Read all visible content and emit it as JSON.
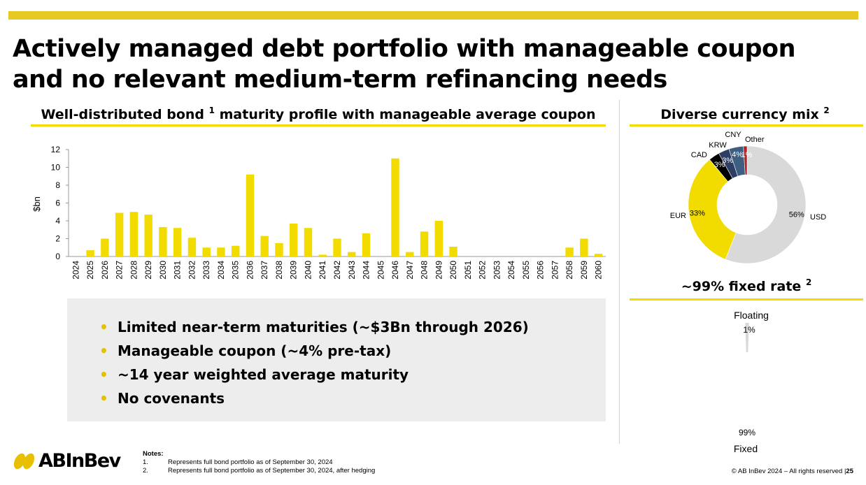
{
  "title_line1": "Actively managed debt portfolio with manageable coupon",
  "title_line2": "and no relevant medium-term refinancing needs",
  "left_heading": {
    "pre": "Well-distributed bond ",
    "sup": "1",
    "post": " maturity profile with manageable average coupon"
  },
  "currency_heading": {
    "text": "Diverse currency mix ",
    "sup": "2"
  },
  "fixed_heading": {
    "text": "~99% fixed rate ",
    "sup": "2"
  },
  "colors": {
    "accent": "#f2dc00",
    "bar": "#f2dc00",
    "grey": "#d9d9d9",
    "black": "#000000",
    "navy": "#2d3d63",
    "slate": "#3e5e82",
    "red": "#b22222"
  },
  "bullets": [
    "Limited near-term maturities (~$3Bn through 2026)",
    "Manageable coupon (~4% pre-tax)",
    "~14 year weighted average maturity",
    "No covenants"
  ],
  "logo_text": "ABInBev",
  "notes": {
    "heading": "Notes:",
    "items": [
      {
        "num": "1.",
        "text": "Represents full bond portfolio as of September 30, 2024"
      },
      {
        "num": "2.",
        "text": "Represents full bond portfolio as of September 30, 2024, after hedging"
      }
    ]
  },
  "copyright": "© AB InBev 2024 – All rights reserved |",
  "page_number": "25",
  "chart_data": [
    {
      "type": "bar",
      "title": "Well-distributed bond 1 maturity profile with manageable average coupon",
      "xlabel": "",
      "ylabel": "$bn",
      "ylim": [
        0,
        12
      ],
      "yticks": [
        0,
        2,
        4,
        6,
        8,
        10,
        12
      ],
      "categories": [
        "2024",
        "2025",
        "2026",
        "2027",
        "2028",
        "2029",
        "2030",
        "2031",
        "2032",
        "2033",
        "2034",
        "2035",
        "2036",
        "2037",
        "2038",
        "2039",
        "2040",
        "2041",
        "2042",
        "2043",
        "2044",
        "2045",
        "2046",
        "2047",
        "2048",
        "2049",
        "2050",
        "2051",
        "2052",
        "2053",
        "2054",
        "2055",
        "2056",
        "2057",
        "2058",
        "2059",
        "2060"
      ],
      "values": [
        0,
        0.7,
        2.0,
        4.9,
        5.0,
        4.7,
        3.3,
        3.2,
        2.1,
        1.0,
        1.0,
        1.2,
        9.2,
        2.3,
        1.5,
        3.7,
        3.2,
        0.2,
        2.0,
        0.5,
        2.6,
        0,
        11.0,
        0.5,
        2.8,
        4.0,
        1.1,
        0,
        0,
        0,
        0,
        0,
        0,
        0,
        1.0,
        2.0,
        0.3
      ]
    },
    {
      "type": "pie",
      "title": "Diverse currency mix 2",
      "slices": [
        {
          "name": "USD",
          "value": 56,
          "label": "56%",
          "color": "#d9d9d9"
        },
        {
          "name": "EUR",
          "value": 33,
          "label": "33%",
          "color": "#f2dc00"
        },
        {
          "name": "CAD",
          "value": 3,
          "label": "3%",
          "color": "#000000"
        },
        {
          "name": "KRW",
          "value": 3,
          "label": "3%",
          "color": "#2d3d63"
        },
        {
          "name": "CNY",
          "value": 4,
          "label": "4%",
          "color": "#3e5e82"
        },
        {
          "name": "Other",
          "value": 1,
          "label": "1%",
          "color": "#b22222"
        }
      ]
    },
    {
      "type": "pie",
      "title": "~99% fixed rate 2",
      "slices": [
        {
          "name": "Floating",
          "value": 1,
          "label": "1%",
          "color": "#d9d9d9"
        },
        {
          "name": "Fixed",
          "value": 99,
          "label": "99%",
          "color": "#f2dc00"
        }
      ]
    }
  ]
}
